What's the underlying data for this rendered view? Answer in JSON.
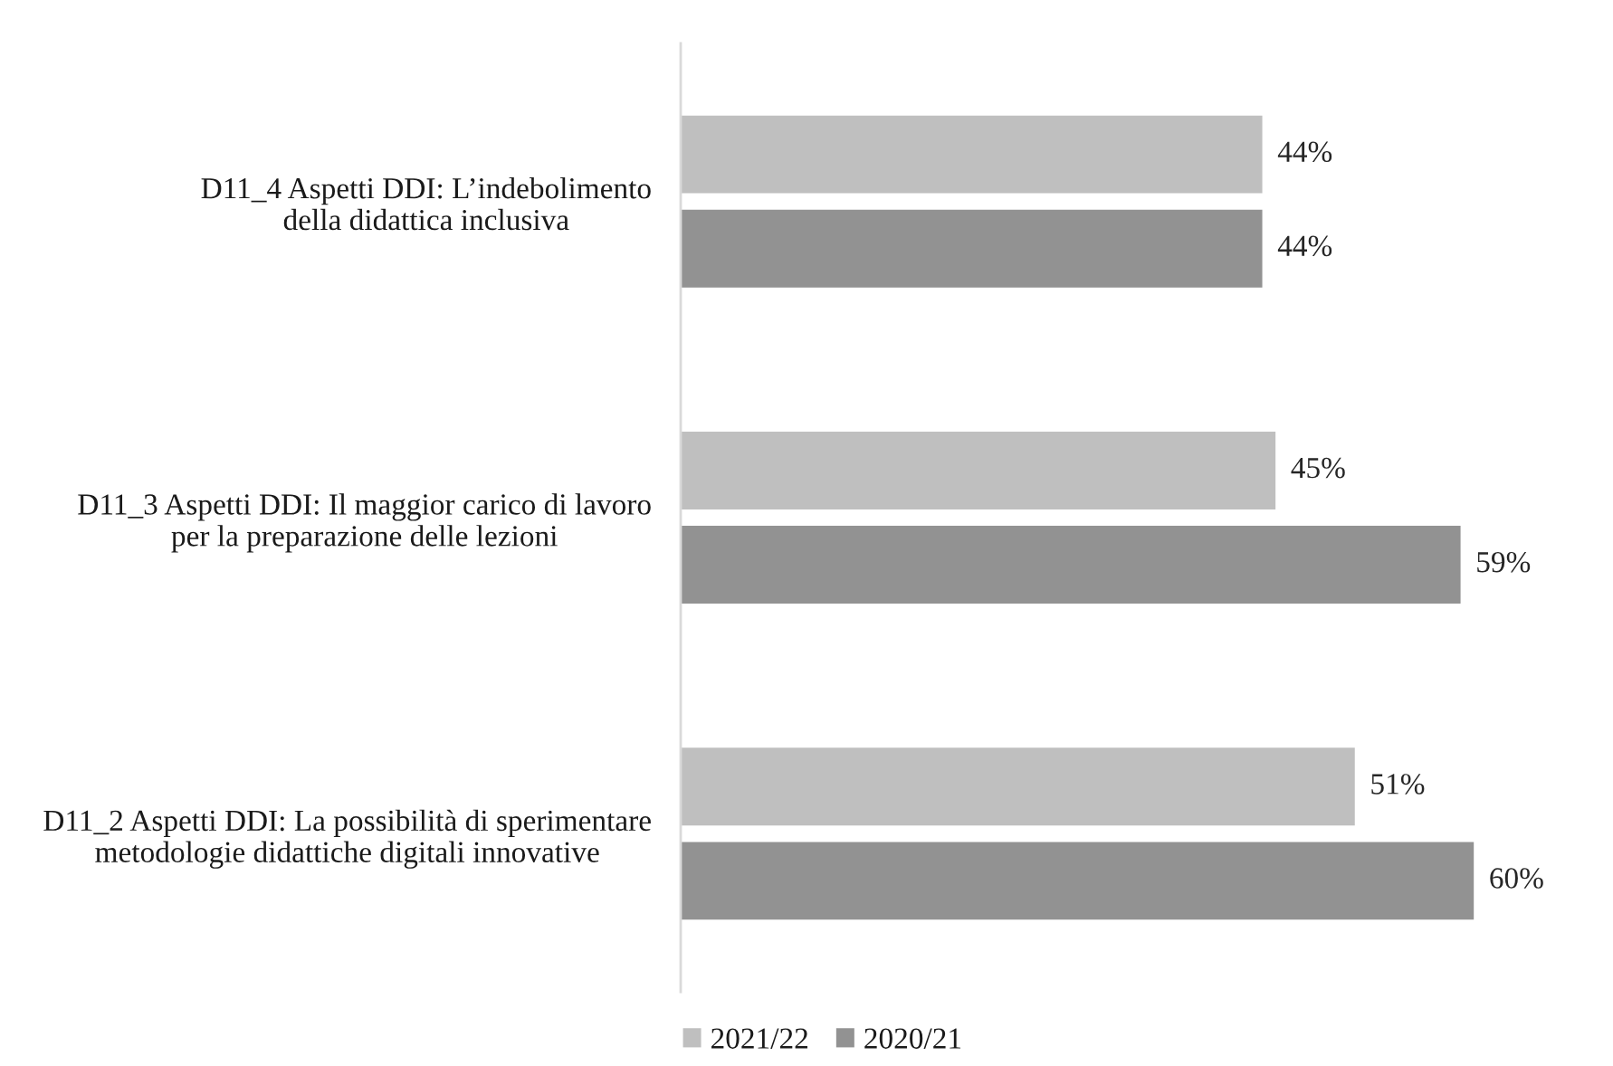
{
  "chart_data": {
    "type": "bar",
    "orientation": "horizontal",
    "categories": [
      "D11_4 Aspetti DDI: L’indebolimento\ndella didattica inclusiva",
      "D11_3 Aspetti DDI: Il maggior carico di lavoro\nper la preparazione delle lezioni",
      "D11_2 Aspetti DDI: La possibilità di sperimentare\nmetodologie didattiche digitali innovative"
    ],
    "series": [
      {
        "name": "2021/22",
        "color": "#bfbfbf",
        "values": [
          44,
          45,
          51
        ],
        "value_labels": [
          "44%",
          "45%",
          "51%"
        ]
      },
      {
        "name": "2020/21",
        "color": "#929292",
        "values": [
          44,
          59,
          60
        ],
        "value_labels": [
          "44%",
          "59%",
          "60%"
        ]
      }
    ],
    "tick_labels": "y",
    "legend": "bottom"
  }
}
